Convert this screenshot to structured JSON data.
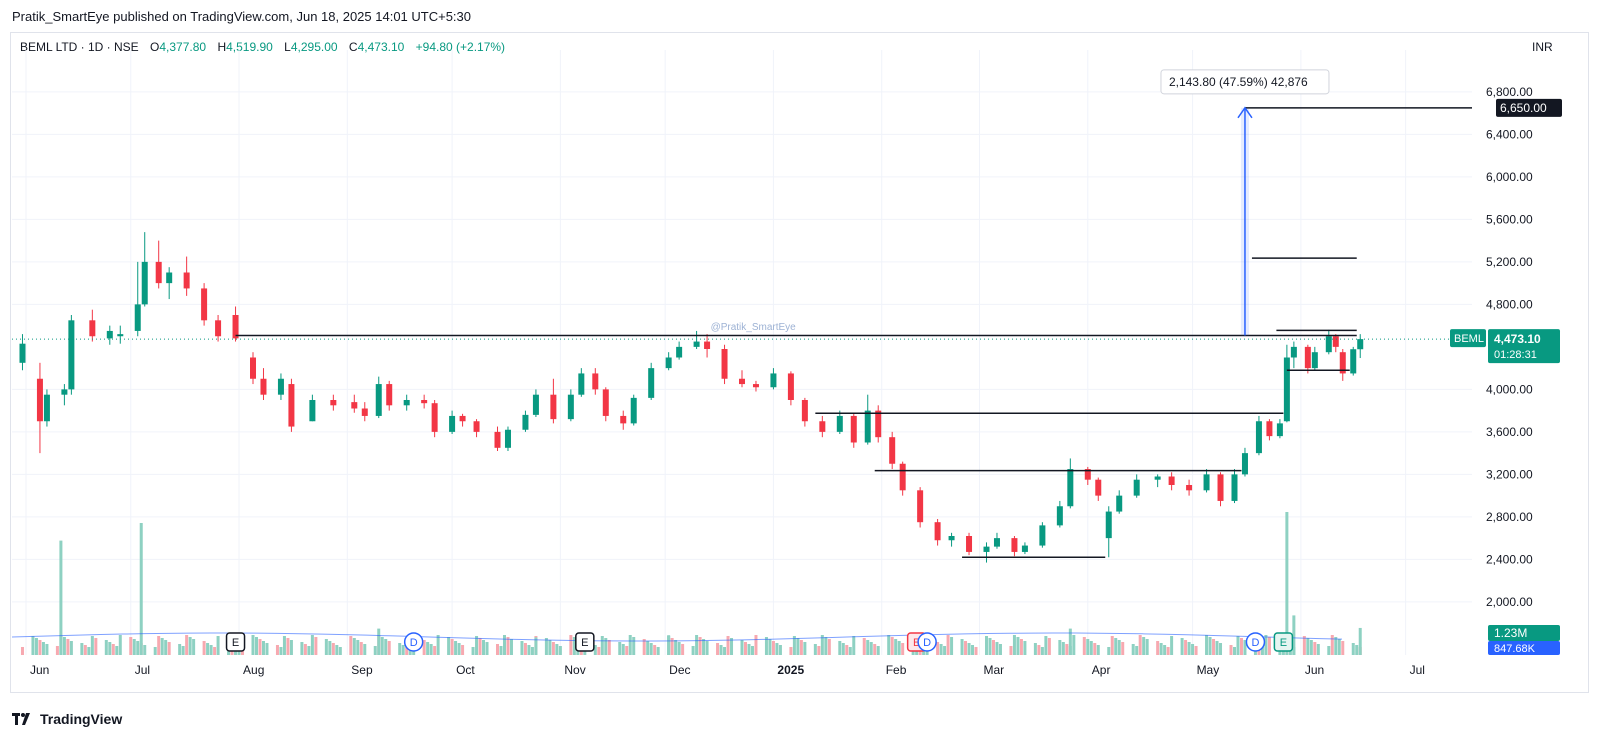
{
  "header": {
    "published": "Pratik_SmartEye published on TradingView.com, Jun 18, 2025 14:01 UTC+5:30",
    "symbol": "BEML LTD · 1D · NSE",
    "o_label": "O",
    "o_value": "4,377.80",
    "h_label": "H",
    "h_value": "4,519.90",
    "l_label": "L",
    "l_value": "4,295.00",
    "c_label": "C",
    "c_value": "4,473.10",
    "change": "+94.80 (+2.17%)",
    "currency": "INR"
  },
  "footer": {
    "brand": "TradingView",
    "logo_icon": "tradingview-logo-icon"
  },
  "colors": {
    "up": "#089981",
    "down": "#f23645",
    "line": "#131722",
    "projection": "#2962ff",
    "vol_up": "#8ed1c2",
    "vol_down": "#f7a9b0",
    "ma": "#2962ff"
  },
  "chart_data": {
    "type": "candlestick",
    "symbol": "BEML",
    "y_axis": {
      "ticks": [
        "6,800.00",
        "6,400.00",
        "6,000.00",
        "5,600.00",
        "5,200.00",
        "4,800.00",
        "4,000.00",
        "3,600.00",
        "3,200.00",
        "2,800.00",
        "2,400.00",
        "2,000.00"
      ],
      "ylim": [
        1500,
        7100
      ]
    },
    "x_axis": {
      "ticks": [
        "Jun",
        "Jul",
        "Aug",
        "Sep",
        "Oct",
        "Nov",
        "Dec",
        "2025",
        "Feb",
        "Mar",
        "Apr",
        "May",
        "Jun",
        "Jul"
      ],
      "range": [
        "2024-05-28",
        "2025-07-20"
      ]
    },
    "last_price": {
      "label": "BEML",
      "value": "4,473.10",
      "countdown": "01:28:31",
      "price": 4473.1
    },
    "target": {
      "label": "6,650.00",
      "value": 6650
    },
    "volume": {
      "last_label": "1.23M",
      "ma_label": "847.68K"
    },
    "watermark": "@Pratik_SmartEye",
    "measure": {
      "text": "2,143.80 (47.59%) 42,876",
      "from_date": "2025-05-16",
      "from": 4507,
      "to": 6650
    },
    "lines": [
      {
        "from": "2024-07-31",
        "to": "2025-06-17",
        "price": 4507
      },
      {
        "from": "2025-05-25",
        "to": "2025-06-17",
        "price": 4555
      },
      {
        "from": "2025-05-18",
        "to": "2025-06-17",
        "price": 5235
      },
      {
        "from": "2025-05-16",
        "to": "2025-07-20",
        "price": 6650
      },
      {
        "from": "2025-01-13",
        "to": "2025-05-27",
        "price": 3775
      },
      {
        "from": "2025-01-30",
        "to": "2025-05-15",
        "price": 3235
      },
      {
        "from": "2025-02-24",
        "to": "2025-04-06",
        "price": 2420
      },
      {
        "from": "2025-05-28",
        "to": "2025-06-15",
        "price": 4180
      }
    ],
    "events": [
      {
        "label": "E",
        "date": "2024-07-31",
        "type": "earnings"
      },
      {
        "label": "D",
        "date": "2024-09-20",
        "type": "dividend"
      },
      {
        "label": "E",
        "date": "2024-11-08",
        "type": "earnings"
      },
      {
        "label": "E",
        "date": "2025-02-11",
        "type": "earnings-next"
      },
      {
        "label": "D",
        "date": "2025-02-14",
        "type": "dividend"
      },
      {
        "label": "D",
        "date": "2025-05-19",
        "type": "dividend"
      },
      {
        "label": "E",
        "date": "2025-05-27",
        "type": "earnings-up"
      }
    ],
    "series": [
      {
        "d": "2024-05-31",
        "o": 4250,
        "h": 4520,
        "l": 4180,
        "c": 4430
      },
      {
        "d": "2024-06-05",
        "o": 4100,
        "h": 4250,
        "l": 3400,
        "c": 3700
      },
      {
        "d": "2024-06-07",
        "o": 3700,
        "h": 4000,
        "l": 3650,
        "c": 3950
      },
      {
        "d": "2024-06-12",
        "o": 3950,
        "h": 4050,
        "l": 3850,
        "c": 4000
      },
      {
        "d": "2024-06-14",
        "o": 4000,
        "h": 4700,
        "l": 3950,
        "c": 4650
      },
      {
        "d": "2024-06-20",
        "o": 4650,
        "h": 4750,
        "l": 4450,
        "c": 4500
      },
      {
        "d": "2024-06-25",
        "o": 4480,
        "h": 4600,
        "l": 4420,
        "c": 4550
      },
      {
        "d": "2024-06-28",
        "o": 4500,
        "h": 4600,
        "l": 4430,
        "c": 4520
      },
      {
        "d": "2024-07-03",
        "o": 4550,
        "h": 5200,
        "l": 4500,
        "c": 4800
      },
      {
        "d": "2024-07-05",
        "o": 4800,
        "h": 5480,
        "l": 4780,
        "c": 5200
      },
      {
        "d": "2024-07-09",
        "o": 5200,
        "h": 5400,
        "l": 4950,
        "c": 5000
      },
      {
        "d": "2024-07-12",
        "o": 5000,
        "h": 5150,
        "l": 4850,
        "c": 5100
      },
      {
        "d": "2024-07-17",
        "o": 5100,
        "h": 5250,
        "l": 4880,
        "c": 4950
      },
      {
        "d": "2024-07-22",
        "o": 4950,
        "h": 5000,
        "l": 4600,
        "c": 4650
      },
      {
        "d": "2024-07-26",
        "o": 4650,
        "h": 4700,
        "l": 4450,
        "c": 4500
      },
      {
        "d": "2024-07-31",
        "o": 4700,
        "h": 4780,
        "l": 4450,
        "c": 4480
      },
      {
        "d": "2024-08-05",
        "o": 4300,
        "h": 4350,
        "l": 4050,
        "c": 4100
      },
      {
        "d": "2024-08-08",
        "o": 4100,
        "h": 4200,
        "l": 3900,
        "c": 3950
      },
      {
        "d": "2024-08-13",
        "o": 3950,
        "h": 4150,
        "l": 3900,
        "c": 4100
      },
      {
        "d": "2024-08-16",
        "o": 4050,
        "h": 4100,
        "l": 3600,
        "c": 3650
      },
      {
        "d": "2024-08-22",
        "o": 3700,
        "h": 3950,
        "l": 3700,
        "c": 3900
      },
      {
        "d": "2024-08-28",
        "o": 3900,
        "h": 3950,
        "l": 3800,
        "c": 3850
      },
      {
        "d": "2024-09-03",
        "o": 3880,
        "h": 3950,
        "l": 3780,
        "c": 3820
      },
      {
        "d": "2024-09-06",
        "o": 3820,
        "h": 3880,
        "l": 3700,
        "c": 3750
      },
      {
        "d": "2024-09-10",
        "o": 3750,
        "h": 4120,
        "l": 3730,
        "c": 4050
      },
      {
        "d": "2024-09-13",
        "o": 4050,
        "h": 4080,
        "l": 3800,
        "c": 3850
      },
      {
        "d": "2024-09-18",
        "o": 3850,
        "h": 3950,
        "l": 3800,
        "c": 3900
      },
      {
        "d": "2024-09-23",
        "o": 3900,
        "h": 3950,
        "l": 3820,
        "c": 3870
      },
      {
        "d": "2024-09-26",
        "o": 3870,
        "h": 3900,
        "l": 3550,
        "c": 3600
      },
      {
        "d": "2024-10-01",
        "o": 3600,
        "h": 3800,
        "l": 3580,
        "c": 3750
      },
      {
        "d": "2024-10-04",
        "o": 3750,
        "h": 3770,
        "l": 3650,
        "c": 3700
      },
      {
        "d": "2024-10-08",
        "o": 3700,
        "h": 3720,
        "l": 3550,
        "c": 3600
      },
      {
        "d": "2024-10-14",
        "o": 3600,
        "h": 3650,
        "l": 3420,
        "c": 3450
      },
      {
        "d": "2024-10-17",
        "o": 3450,
        "h": 3650,
        "l": 3420,
        "c": 3620
      },
      {
        "d": "2024-10-22",
        "o": 3620,
        "h": 3800,
        "l": 3600,
        "c": 3760
      },
      {
        "d": "2024-10-25",
        "o": 3760,
        "h": 4000,
        "l": 3740,
        "c": 3950
      },
      {
        "d": "2024-10-30",
        "o": 3950,
        "h": 4100,
        "l": 3680,
        "c": 3720
      },
      {
        "d": "2024-11-04",
        "o": 3720,
        "h": 4000,
        "l": 3700,
        "c": 3950
      },
      {
        "d": "2024-11-07",
        "o": 3950,
        "h": 4200,
        "l": 3930,
        "c": 4150
      },
      {
        "d": "2024-11-11",
        "o": 4150,
        "h": 4200,
        "l": 3950,
        "c": 4000
      },
      {
        "d": "2024-11-14",
        "o": 4000,
        "h": 4020,
        "l": 3700,
        "c": 3750
      },
      {
        "d": "2024-11-19",
        "o": 3750,
        "h": 3800,
        "l": 3620,
        "c": 3680
      },
      {
        "d": "2024-11-22",
        "o": 3680,
        "h": 3950,
        "l": 3660,
        "c": 3920
      },
      {
        "d": "2024-11-27",
        "o": 3920,
        "h": 4250,
        "l": 3900,
        "c": 4200
      },
      {
        "d": "2024-12-02",
        "o": 4200,
        "h": 4350,
        "l": 4180,
        "c": 4300
      },
      {
        "d": "2024-12-05",
        "o": 4300,
        "h": 4450,
        "l": 4280,
        "c": 4400
      },
      {
        "d": "2024-12-10",
        "o": 4400,
        "h": 4550,
        "l": 4380,
        "c": 4450
      },
      {
        "d": "2024-12-13",
        "o": 4450,
        "h": 4520,
        "l": 4300,
        "c": 4380
      },
      {
        "d": "2024-12-18",
        "o": 4380,
        "h": 4420,
        "l": 4050,
        "c": 4100
      },
      {
        "d": "2024-12-23",
        "o": 4100,
        "h": 4180,
        "l": 4020,
        "c": 4050
      },
      {
        "d": "2024-12-27",
        "o": 4050,
        "h": 4080,
        "l": 3980,
        "c": 4020
      },
      {
        "d": "2025-01-01",
        "o": 4020,
        "h": 4200,
        "l": 4000,
        "c": 4150
      },
      {
        "d": "2025-01-06",
        "o": 4150,
        "h": 4170,
        "l": 3850,
        "c": 3900
      },
      {
        "d": "2025-01-10",
        "o": 3900,
        "h": 3920,
        "l": 3650,
        "c": 3700
      },
      {
        "d": "2025-01-15",
        "o": 3700,
        "h": 3750,
        "l": 3550,
        "c": 3600
      },
      {
        "d": "2025-01-20",
        "o": 3600,
        "h": 3800,
        "l": 3580,
        "c": 3750
      },
      {
        "d": "2025-01-24",
        "o": 3750,
        "h": 3780,
        "l": 3450,
        "c": 3500
      },
      {
        "d": "2025-01-28",
        "o": 3500,
        "h": 3950,
        "l": 3480,
        "c": 3800
      },
      {
        "d": "2025-01-31",
        "o": 3800,
        "h": 3850,
        "l": 3500,
        "c": 3550
      },
      {
        "d": "2025-02-04",
        "o": 3550,
        "h": 3600,
        "l": 3250,
        "c": 3300
      },
      {
        "d": "2025-02-07",
        "o": 3300,
        "h": 3320,
        "l": 3000,
        "c": 3050
      },
      {
        "d": "2025-02-12",
        "o": 3050,
        "h": 3080,
        "l": 2700,
        "c": 2750
      },
      {
        "d": "2025-02-17",
        "o": 2750,
        "h": 2780,
        "l": 2530,
        "c": 2580
      },
      {
        "d": "2025-02-21",
        "o": 2580,
        "h": 2650,
        "l": 2520,
        "c": 2620
      },
      {
        "d": "2025-02-26",
        "o": 2620,
        "h": 2650,
        "l": 2440,
        "c": 2470
      },
      {
        "d": "2025-03-03",
        "o": 2470,
        "h": 2560,
        "l": 2370,
        "c": 2520
      },
      {
        "d": "2025-03-06",
        "o": 2520,
        "h": 2650,
        "l": 2500,
        "c": 2600
      },
      {
        "d": "2025-03-11",
        "o": 2600,
        "h": 2620,
        "l": 2430,
        "c": 2470
      },
      {
        "d": "2025-03-14",
        "o": 2470,
        "h": 2560,
        "l": 2450,
        "c": 2530
      },
      {
        "d": "2025-03-19",
        "o": 2530,
        "h": 2750,
        "l": 2510,
        "c": 2720
      },
      {
        "d": "2025-03-24",
        "o": 2720,
        "h": 2950,
        "l": 2700,
        "c": 2900
      },
      {
        "d": "2025-03-27",
        "o": 2900,
        "h": 3350,
        "l": 2880,
        "c": 3250
      },
      {
        "d": "2025-04-01",
        "o": 3250,
        "h": 3270,
        "l": 3100,
        "c": 3150
      },
      {
        "d": "2025-04-04",
        "o": 3150,
        "h": 3170,
        "l": 2950,
        "c": 3000
      },
      {
        "d": "2025-04-07",
        "o": 2600,
        "h": 2900,
        "l": 2420,
        "c": 2850
      },
      {
        "d": "2025-04-10",
        "o": 2850,
        "h": 3050,
        "l": 2830,
        "c": 3000
      },
      {
        "d": "2025-04-15",
        "o": 3000,
        "h": 3200,
        "l": 2980,
        "c": 3150
      },
      {
        "d": "2025-04-21",
        "o": 3150,
        "h": 3200,
        "l": 3080,
        "c": 3180
      },
      {
        "d": "2025-04-25",
        "o": 3180,
        "h": 3220,
        "l": 3050,
        "c": 3100
      },
      {
        "d": "2025-04-30",
        "o": 3100,
        "h": 3150,
        "l": 3000,
        "c": 3050
      },
      {
        "d": "2025-05-05",
        "o": 3050,
        "h": 3250,
        "l": 3030,
        "c": 3200
      },
      {
        "d": "2025-05-09",
        "o": 3200,
        "h": 3220,
        "l": 2900,
        "c": 2950
      },
      {
        "d": "2025-05-13",
        "o": 2950,
        "h": 3250,
        "l": 2930,
        "c": 3200
      },
      {
        "d": "2025-05-16",
        "o": 3200,
        "h": 3450,
        "l": 3180,
        "c": 3400
      },
      {
        "d": "2025-05-20",
        "o": 3400,
        "h": 3750,
        "l": 3380,
        "c": 3700
      },
      {
        "d": "2025-05-23",
        "o": 3700,
        "h": 3720,
        "l": 3520,
        "c": 3560
      },
      {
        "d": "2025-05-26",
        "o": 3560,
        "h": 3720,
        "l": 3540,
        "c": 3680
      },
      {
        "d": "2025-05-28",
        "o": 3700,
        "h": 4420,
        "l": 3690,
        "c": 4300
      },
      {
        "d": "2025-05-30",
        "o": 4300,
        "h": 4450,
        "l": 4200,
        "c": 4400
      },
      {
        "d": "2025-06-03",
        "o": 4400,
        "h": 4420,
        "l": 4150,
        "c": 4200
      },
      {
        "d": "2025-06-05",
        "o": 4200,
        "h": 4400,
        "l": 4180,
        "c": 4350
      },
      {
        "d": "2025-06-09",
        "o": 4350,
        "h": 4560,
        "l": 4330,
        "c": 4500
      },
      {
        "d": "2025-06-11",
        "o": 4500,
        "h": 4520,
        "l": 4350,
        "c": 4400
      },
      {
        "d": "2025-06-13",
        "o": 4350,
        "h": 4380,
        "l": 4080,
        "c": 4150
      },
      {
        "d": "2025-06-16",
        "o": 4150,
        "h": 4400,
        "l": 4130,
        "c": 4378
      },
      {
        "d": "2025-06-18",
        "o": 4377.8,
        "h": 4519.9,
        "l": 4295,
        "c": 4473.1
      }
    ],
    "volume_bars": [
      {
        "d": "2024-06-11",
        "v": 5.2,
        "up": true
      },
      {
        "d": "2024-07-04",
        "v": 6.0,
        "up": true
      },
      {
        "d": "2024-09-10",
        "v": 1.2,
        "up": true
      },
      {
        "d": "2024-10-25",
        "v": 0.8,
        "up": true
      },
      {
        "d": "2024-12-02",
        "v": 0.9,
        "up": true
      },
      {
        "d": "2025-03-27",
        "v": 1.2,
        "up": true
      },
      {
        "d": "2025-05-28",
        "v": 6.5,
        "up": true
      },
      {
        "d": "2025-05-30",
        "v": 1.8,
        "up": true
      },
      {
        "d": "2025-06-18",
        "v": 1.23,
        "up": true
      }
    ]
  }
}
